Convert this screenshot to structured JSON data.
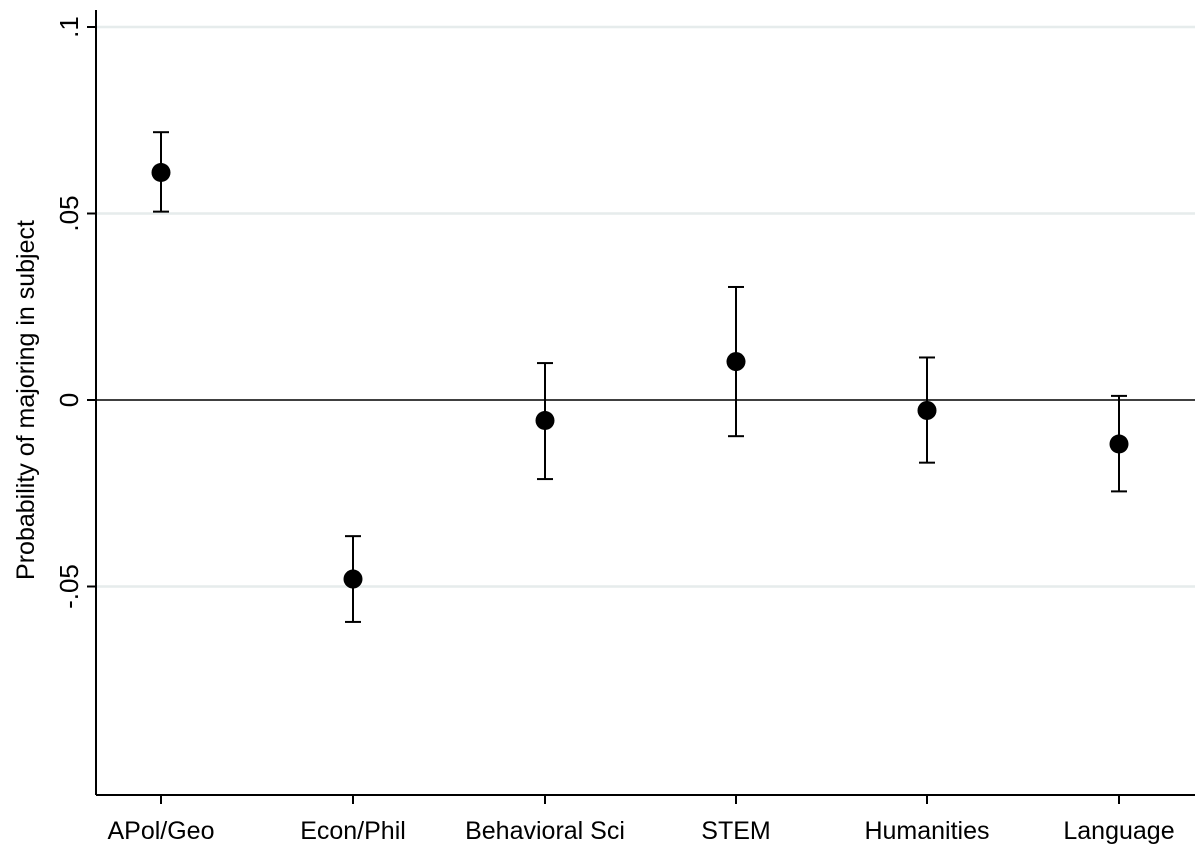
{
  "chart_data": {
    "type": "scatter",
    "title": "",
    "xlabel": "",
    "ylabel": "Probability of majoring in subject",
    "categories": [
      "APol/Geo",
      "Econ/Phil",
      "Behavioral Sci",
      "STEM",
      "Humanities",
      "Language"
    ],
    "estimates": [
      0.061,
      -0.048,
      -0.0055,
      0.0103,
      -0.0028,
      -0.0118
    ],
    "ci_lower": [
      0.0505,
      -0.0595,
      -0.0212,
      -0.0097,
      -0.0168,
      -0.0245
    ],
    "ci_upper": [
      0.0718,
      -0.0365,
      0.0099,
      0.0303,
      0.0114,
      0.0011
    ],
    "ylim": [
      -0.1055,
      0.1
    ],
    "yticks": [
      ".1",
      ".05",
      "0",
      "-.05"
    ],
    "ytick_values": [
      0.1,
      0.05,
      0,
      -0.05
    ],
    "reference_line": 0,
    "grid": true,
    "colors": {
      "marker": "#000000",
      "grid": "#e6ecec",
      "axis": "#000000"
    }
  }
}
